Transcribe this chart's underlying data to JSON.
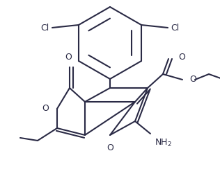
{
  "bg": "#ffffff",
  "lc": "#2a2a45",
  "lw": 1.5,
  "fs": 9.0,
  "xlim": [
    0,
    316
  ],
  "ylim": [
    0,
    244
  ]
}
